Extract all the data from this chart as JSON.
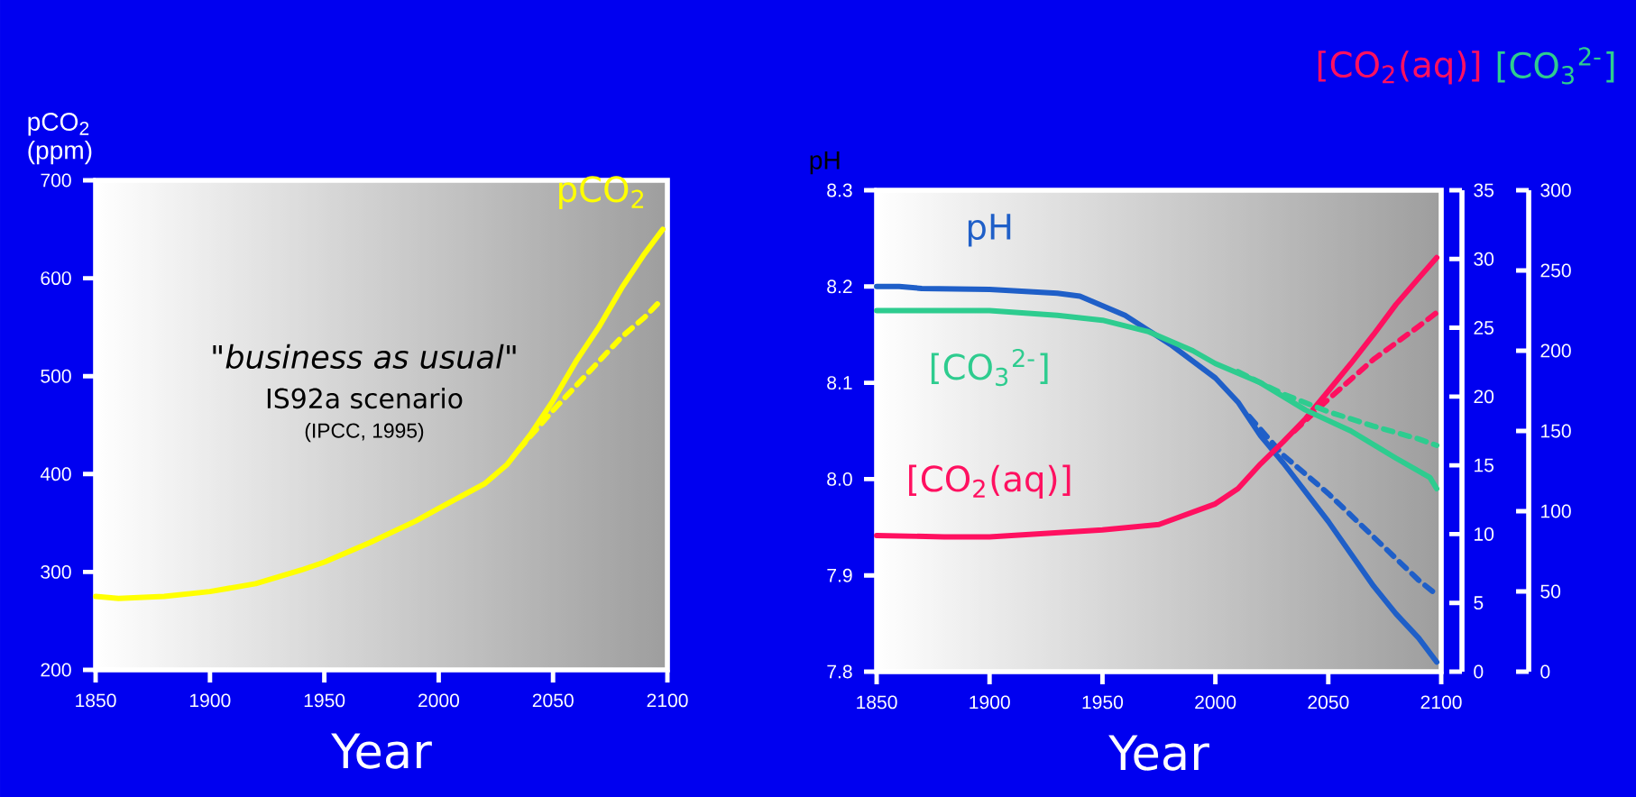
{
  "chart_data": [
    {
      "type": "line",
      "xlabel": "Year",
      "ylabel": "pCO$_{2}$ (ppm)",
      "annotations": [
        "\"business as usual\"",
        "IS92a scenario",
        "(IPCC, 1995)"
      ],
      "xlim": [
        1850,
        2100
      ],
      "xticks": [
        1850,
        1900,
        1950,
        2000,
        2050,
        2100
      ],
      "ylim": [
        200,
        700
      ],
      "yticks": [
        200,
        300,
        400,
        500,
        600,
        700
      ],
      "series": [
        {
          "name": "pCO$_{2}$",
          "color": "#ffff00",
          "x": [
            1850,
            1860,
            1880,
            1900,
            1920,
            1940,
            1950,
            1970,
            1990,
            2000,
            2020,
            2030,
            2040,
            2050,
            2060,
            2070,
            2080,
            2090,
            2098
          ],
          "values": [
            275,
            273,
            275,
            280,
            288,
            302,
            310,
            330,
            352,
            365,
            390,
            410,
            440,
            475,
            515,
            550,
            590,
            625,
            650
          ]
        },
        {
          "color": "#ffff00",
          "line_style": "dashed",
          "x": [
            2035,
            2050,
            2060,
            2070,
            2080,
            2090,
            2097
          ],
          "values": [
            425,
            465,
            490,
            515,
            540,
            560,
            577
          ]
        }
      ]
    },
    {
      "type": "line",
      "xlabel": "Year",
      "ylabel": "pH",
      "y2label": "[CO$_{2}$(aq)]",
      "y3label": "[CO$_{3}$$^{2-}$]",
      "xlim": [
        1850,
        2100
      ],
      "xticks": [
        1850,
        1900,
        1950,
        2000,
        2050,
        2100
      ],
      "ylim": [
        7.8,
        8.3
      ],
      "yticks": [
        7.8,
        7.9,
        {
          "value": 8.0,
          "label": "8.0"
        },
        8.1,
        8.2,
        8.3
      ],
      "y2lim": [
        0,
        35
      ],
      "y2ticks": [
        0,
        5,
        10,
        15,
        20,
        25,
        30,
        35
      ],
      "y3lim": [
        0,
        300
      ],
      "y3ticks": [
        0,
        50,
        100,
        150,
        200,
        250,
        300
      ],
      "series": [
        {
          "name": "pH",
          "color": "#1f5fc8",
          "axis": "y",
          "x": [
            1850,
            1860,
            1870,
            1900,
            1930,
            1940,
            1960,
            1980,
            2000,
            2010,
            2020,
            2030,
            2050,
            2070,
            2080,
            2090,
            2098
          ],
          "values": [
            8.2,
            8.2,
            8.198,
            8.197,
            8.193,
            8.19,
            8.17,
            8.14,
            8.105,
            8.08,
            8.045,
            8.017,
            7.956,
            7.889,
            7.86,
            7.835,
            7.81
          ]
        },
        {
          "color": "#1f5fc8",
          "axis": "y",
          "line_style": "dashed",
          "x": [
            2015,
            2030,
            2050,
            2070,
            2090,
            2098
          ],
          "values": [
            8.065,
            8.025,
            7.985,
            7.94,
            7.895,
            7.88
          ]
        },
        {
          "name": "[CO$_{3}$$^{2-}$]",
          "color": "#2ecc8f",
          "axis": "y3",
          "x": [
            1850,
            1900,
            1930,
            1950,
            1970,
            1990,
            2000,
            2020,
            2040,
            2060,
            2080,
            2095,
            2098
          ],
          "values": [
            225,
            225,
            222,
            219,
            212,
            200,
            192,
            180,
            163,
            150,
            133,
            121,
            114
          ]
        },
        {
          "color": "#2ecc8f",
          "axis": "y3",
          "line_style": "dashed",
          "x": [
            2010,
            2030,
            2050,
            2070,
            2090,
            2098
          ],
          "values": [
            187,
            173,
            162,
            153,
            145,
            141
          ]
        },
        {
          "name": "[CO$_{2}$(aq)]",
          "color": "#ff1060",
          "axis": "y2",
          "x": [
            1850,
            1880,
            1900,
            1950,
            1975,
            2000,
            2010,
            2020,
            2030,
            2040,
            2050,
            2060,
            2070,
            2080,
            2090,
            2098
          ],
          "values": [
            9.9,
            9.8,
            9.8,
            10.3,
            10.7,
            12.2,
            13.3,
            15.1,
            16.7,
            18.4,
            20.4,
            22.4,
            24.5,
            26.7,
            28.6,
            30.1
          ]
        },
        {
          "color": "#ff1060",
          "axis": "y2",
          "line_style": "dashed",
          "x": [
            2035,
            2050,
            2070,
            2090,
            2098
          ],
          "values": [
            17.5,
            19.8,
            22.7,
            25.1,
            26.1
          ]
        }
      ]
    }
  ]
}
